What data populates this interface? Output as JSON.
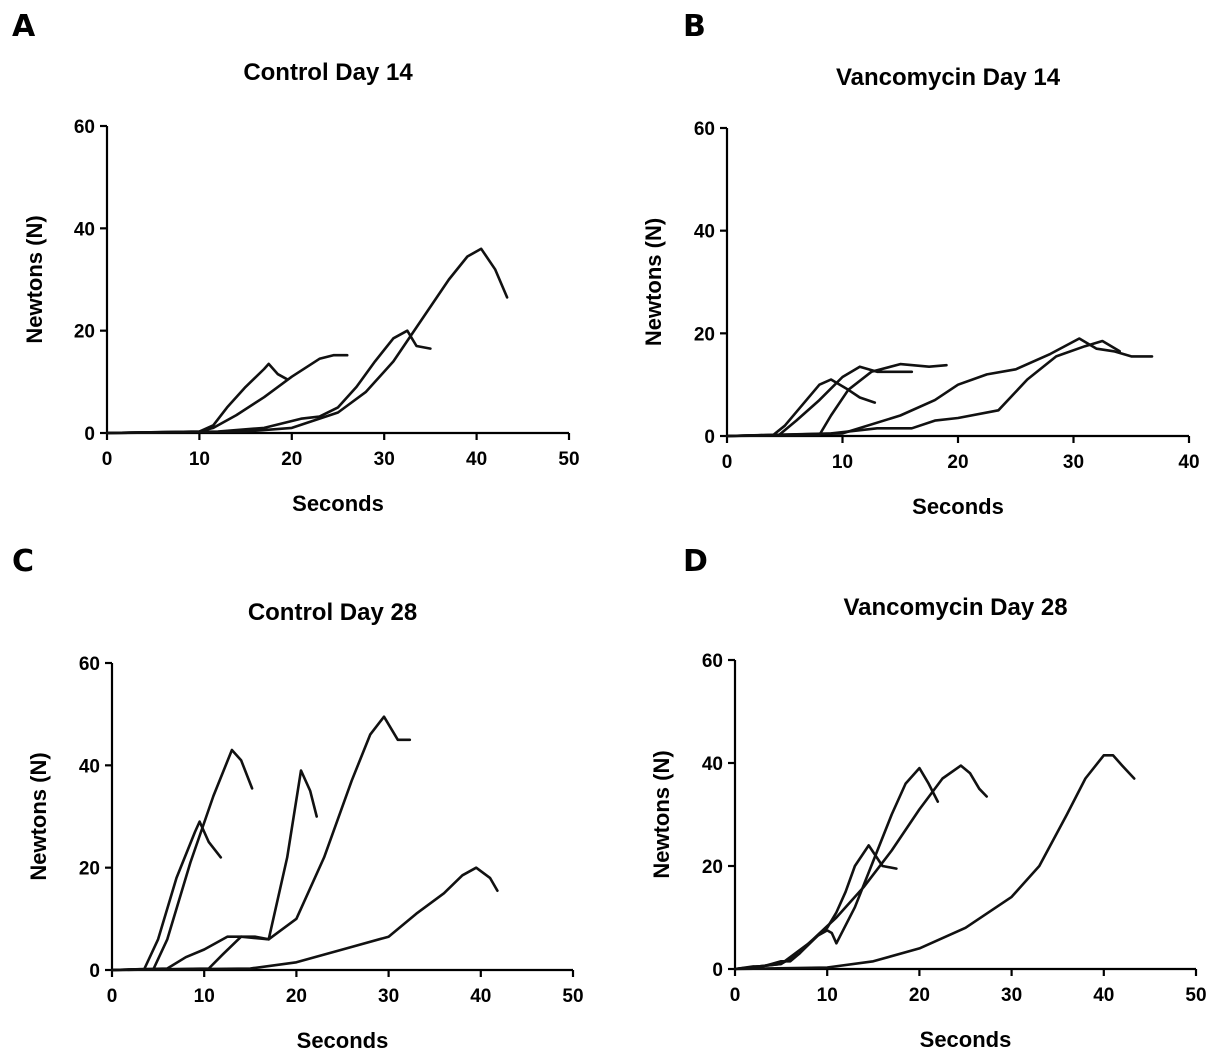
{
  "chart_data": [
    {
      "panel": "A",
      "type": "line",
      "title": "Control Day 14",
      "xlabel": "Seconds",
      "ylabel": "Newtons (N)",
      "xlim": [
        0,
        50
      ],
      "ylim": [
        0,
        60
      ],
      "xticks": [
        0,
        10,
        20,
        30,
        40,
        50
      ],
      "yticks": [
        0,
        20,
        40,
        60
      ],
      "grid": false,
      "series": [
        {
          "x": [
            0,
            10,
            11.5,
            13,
            15,
            17,
            17.5,
            18.5,
            19.5
          ],
          "y": [
            0,
            0.3,
            1.5,
            5,
            9,
            12.5,
            13.5,
            11.5,
            10.5
          ]
        },
        {
          "x": [
            0,
            10,
            11.5,
            14,
            17,
            20,
            23,
            24.5,
            26
          ],
          "y": [
            0,
            0.3,
            1,
            3.5,
            7,
            11,
            14.5,
            15.2,
            15.2
          ]
        },
        {
          "x": [
            0,
            12,
            17,
            21,
            23,
            25,
            27,
            29,
            31,
            32.5,
            33.5,
            35
          ],
          "y": [
            0,
            0.3,
            1,
            2.8,
            3.2,
            5,
            9,
            14,
            18.5,
            20,
            17,
            16.5
          ]
        },
        {
          "x": [
            0,
            15,
            20,
            25,
            28,
            31,
            34,
            37,
            39,
            40.5,
            42,
            43.3
          ],
          "y": [
            0,
            0.3,
            1,
            4,
            8,
            14,
            22,
            30,
            34.5,
            36,
            32,
            26.5
          ]
        }
      ]
    },
    {
      "panel": "B",
      "type": "line",
      "title": "Vancomycin Day 14",
      "xlabel": "Seconds",
      "ylabel": "Newtons (N)",
      "xlim": [
        0,
        40
      ],
      "ylim": [
        0,
        60
      ],
      "xticks": [
        0,
        10,
        20,
        30,
        40
      ],
      "yticks": [
        0,
        20,
        40,
        60
      ],
      "grid": false,
      "series": [
        {
          "x": [
            0,
            4,
            5,
            6.5,
            8,
            9,
            10.5,
            11.5,
            12.8
          ],
          "y": [
            0,
            0.2,
            2,
            6,
            10,
            11,
            9,
            7.5,
            6.5
          ]
        },
        {
          "x": [
            0,
            4.5,
            6,
            8,
            10,
            11.5,
            13,
            14.5,
            16
          ],
          "y": [
            0,
            0.2,
            3,
            7,
            11.5,
            13.5,
            12.5,
            12.5,
            12.5
          ]
        },
        {
          "x": [
            0,
            8,
            9,
            10.5,
            12.5,
            15,
            17.5,
            19
          ],
          "y": [
            0,
            0.2,
            4,
            9,
            12.5,
            14,
            13.5,
            13.8
          ]
        },
        {
          "x": [
            0,
            10,
            15,
            18,
            20,
            22.5,
            25,
            28,
            30.5,
            32,
            33.5,
            35,
            36.8
          ],
          "y": [
            0,
            0.5,
            4,
            7,
            10,
            12,
            13,
            16,
            19,
            17,
            16.5,
            15.5,
            15.5
          ]
        },
        {
          "x": [
            0,
            9,
            13,
            16,
            18,
            20,
            23.5,
            26,
            28.5,
            31,
            32.5,
            34
          ],
          "y": [
            0,
            0.5,
            1.5,
            1.5,
            3,
            3.5,
            5,
            11,
            15.5,
            17.5,
            18.5,
            16.5
          ]
        }
      ]
    },
    {
      "panel": "C",
      "type": "line",
      "title": "Control Day 28",
      "xlabel": "Seconds",
      "ylabel": "Newtons (N)",
      "xlim": [
        0,
        50
      ],
      "ylim": [
        0,
        60
      ],
      "xticks": [
        0,
        10,
        20,
        30,
        40,
        50
      ],
      "yticks": [
        0,
        20,
        40,
        60
      ],
      "grid": false,
      "series": [
        {
          "x": [
            0,
            3.5,
            5,
            7,
            9,
            9.5,
            10.5,
            11.8
          ],
          "y": [
            0,
            0.2,
            6,
            18,
            27,
            29,
            25,
            22
          ]
        },
        {
          "x": [
            0,
            4.5,
            6,
            8.5,
            11,
            13,
            14,
            15.2
          ],
          "y": [
            0,
            0.2,
            6,
            21,
            34,
            43,
            41,
            35.5
          ]
        },
        {
          "x": [
            0,
            6,
            8,
            10,
            12.5,
            15.5,
            17,
            19,
            20.5,
            21.5,
            22.2
          ],
          "y": [
            0,
            0.3,
            2.5,
            4,
            6.5,
            6.5,
            6,
            22,
            39,
            35,
            30
          ]
        },
        {
          "x": [
            0,
            10.5,
            12,
            14,
            17,
            20,
            23,
            26,
            28,
            29.5,
            31,
            32.3
          ],
          "y": [
            0,
            0.3,
            3,
            6.5,
            6,
            10,
            22,
            37,
            46,
            49.5,
            45,
            45
          ]
        },
        {
          "x": [
            0,
            15,
            20,
            25,
            30,
            33,
            36,
            38,
            39.5,
            41,
            41.8
          ],
          "y": [
            0,
            0.3,
            1.5,
            4,
            6.5,
            11,
            15,
            18.5,
            20,
            18,
            15.5
          ]
        }
      ]
    },
    {
      "panel": "D",
      "type": "line",
      "title": "Vancomycin Day 28",
      "xlabel": "Seconds",
      "ylabel": "Newtons (N)",
      "xlim": [
        0,
        50
      ],
      "ylim": [
        0,
        60
      ],
      "xticks": [
        0,
        10,
        20,
        30,
        40,
        50
      ],
      "yticks": [
        0,
        20,
        40,
        60
      ],
      "grid": false,
      "series": [
        {
          "x": [
            0,
            2,
            3,
            4,
            5,
            6,
            7,
            8,
            10,
            11,
            12,
            13,
            14.5,
            16,
            17.5
          ],
          "y": [
            0,
            0.5,
            0.5,
            1,
            1.5,
            1.5,
            3,
            5,
            8,
            11,
            15,
            20,
            24,
            20,
            19.5
          ]
        },
        {
          "x": [
            0,
            5,
            7,
            9,
            10,
            10.5,
            11,
            13,
            15,
            17,
            18.5,
            20,
            21,
            22
          ],
          "y": [
            0,
            1,
            3,
            6.5,
            7.5,
            7,
            5,
            12,
            21,
            30,
            36,
            39,
            36,
            32.5
          ]
        },
        {
          "x": [
            0,
            5,
            8,
            11,
            14,
            17,
            20,
            22.5,
            24.5,
            25.5,
            26.5,
            27.3
          ],
          "y": [
            0,
            1,
            5,
            10,
            16,
            23,
            31,
            37,
            39.5,
            38,
            35,
            33.5
          ]
        },
        {
          "x": [
            0,
            10,
            15,
            20,
            25,
            30,
            33,
            36,
            38,
            40,
            41,
            42,
            43.3
          ],
          "y": [
            0,
            0.3,
            1.5,
            4,
            8,
            14,
            20,
            30,
            37,
            41.5,
            41.5,
            39.5,
            37
          ]
        }
      ]
    }
  ]
}
